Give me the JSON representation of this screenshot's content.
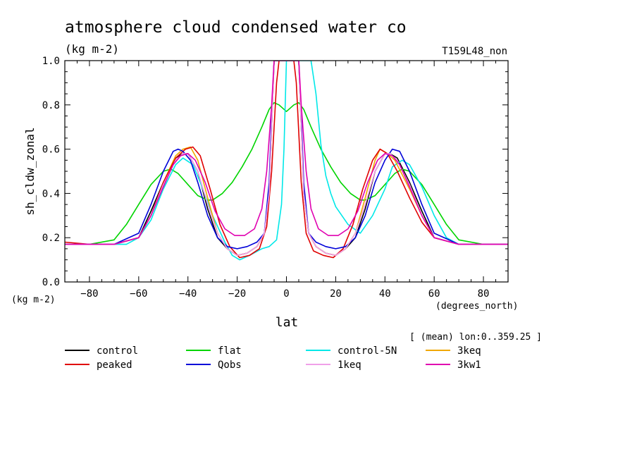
{
  "header": {
    "title": "atmosphere cloud condensed water co",
    "units": "(kg m-2)",
    "experiment": "T159L48_non",
    "units_axis_note": "(kg m-2)",
    "x_units": "(degrees_north)",
    "mean_note": "[ (mean) lon:0..359.25 ]"
  },
  "chart_data": {
    "type": "line",
    "xlabel": "lat",
    "ylabel": "sh_cldw_zonal",
    "xlim": [
      -90,
      90
    ],
    "ylim": [
      0,
      1
    ],
    "xticks": [
      -80,
      -60,
      -40,
      -20,
      0,
      20,
      40,
      60,
      80
    ],
    "yticks": [
      0.0,
      0.2,
      0.4,
      0.6,
      0.8,
      1.0
    ],
    "ytick_labels": [
      "0.0",
      "0.2",
      "0.4",
      "0.6",
      "0.8",
      "1.0"
    ],
    "legend_position": "bottom",
    "series": [
      {
        "name": "control",
        "color": "#000000",
        "x": [
          -90,
          -80,
          -70,
          -60,
          -55,
          -50,
          -45,
          -42,
          -40,
          -36,
          -32,
          -28,
          -24,
          -20,
          -16,
          -12,
          -9,
          -7,
          -6,
          -5,
          -4,
          4,
          5,
          6,
          7,
          9,
          12,
          16,
          20,
          24,
          28,
          32,
          36,
          40,
          42,
          45,
          50,
          55,
          60,
          70,
          80,
          90
        ],
        "y": [
          0.17,
          0.17,
          0.17,
          0.2,
          0.32,
          0.45,
          0.56,
          0.58,
          0.58,
          0.5,
          0.33,
          0.2,
          0.15,
          0.12,
          0.13,
          0.16,
          0.22,
          0.4,
          0.7,
          1.0,
          1.0,
          1.0,
          1.0,
          0.7,
          0.4,
          0.22,
          0.16,
          0.13,
          0.12,
          0.15,
          0.2,
          0.33,
          0.5,
          0.58,
          0.58,
          0.56,
          0.45,
          0.32,
          0.2,
          0.17,
          0.17,
          0.17
        ]
      },
      {
        "name": "flat",
        "color": "#00d400",
        "x": [
          -90,
          -80,
          -70,
          -65,
          -60,
          -55,
          -50,
          -47,
          -44,
          -40,
          -36,
          -32,
          -30,
          -26,
          -22,
          -18,
          -14,
          -10,
          -7,
          -5,
          -3,
          0,
          3,
          5,
          7,
          10,
          14,
          18,
          22,
          26,
          30,
          32,
          36,
          40,
          44,
          47,
          50,
          55,
          60,
          65,
          70,
          80,
          90
        ],
        "y": [
          0.17,
          0.17,
          0.19,
          0.26,
          0.35,
          0.44,
          0.5,
          0.51,
          0.49,
          0.44,
          0.39,
          0.37,
          0.37,
          0.4,
          0.45,
          0.52,
          0.6,
          0.7,
          0.78,
          0.81,
          0.8,
          0.77,
          0.8,
          0.81,
          0.78,
          0.7,
          0.6,
          0.52,
          0.45,
          0.4,
          0.37,
          0.37,
          0.39,
          0.44,
          0.49,
          0.51,
          0.5,
          0.44,
          0.35,
          0.26,
          0.19,
          0.17,
          0.17
        ]
      },
      {
        "name": "control-5N",
        "color": "#00e8e8",
        "x": [
          -90,
          -75,
          -65,
          -60,
          -55,
          -50,
          -45,
          -42,
          -38,
          -35,
          -30,
          -25,
          -22,
          -19,
          -15,
          -10,
          -7,
          -4,
          -2,
          -1,
          0,
          1,
          2,
          4,
          6,
          8,
          10,
          12,
          14,
          16,
          18,
          20,
          25,
          30,
          35,
          40,
          43,
          47,
          50,
          55,
          60,
          65,
          70,
          75,
          90
        ],
        "y": [
          0.17,
          0.17,
          0.17,
          0.2,
          0.28,
          0.42,
          0.53,
          0.56,
          0.53,
          0.45,
          0.3,
          0.18,
          0.12,
          0.1,
          0.12,
          0.15,
          0.16,
          0.19,
          0.35,
          0.6,
          1.0,
          1.0,
          1.0,
          1.0,
          1.0,
          1.0,
          1.0,
          0.85,
          0.62,
          0.48,
          0.4,
          0.34,
          0.26,
          0.22,
          0.3,
          0.42,
          0.52,
          0.55,
          0.53,
          0.43,
          0.3,
          0.2,
          0.17,
          0.17,
          0.17
        ]
      },
      {
        "name": "3keq",
        "color": "#f0a800",
        "x": [
          -90,
          -80,
          -70,
          -60,
          -55,
          -50,
          -45,
          -42,
          -39,
          -36,
          -32,
          -28,
          -24,
          -20,
          -16,
          -12,
          -9,
          -7,
          -6,
          -5,
          -4,
          4,
          5,
          6,
          7,
          9,
          12,
          16,
          20,
          24,
          28,
          32,
          36,
          38,
          41,
          44,
          50,
          55,
          60,
          70,
          80,
          90
        ],
        "y": [
          0.17,
          0.17,
          0.17,
          0.2,
          0.3,
          0.45,
          0.57,
          0.6,
          0.61,
          0.55,
          0.38,
          0.22,
          0.15,
          0.12,
          0.13,
          0.16,
          0.22,
          0.4,
          0.7,
          1.0,
          1.0,
          1.0,
          1.0,
          0.7,
          0.4,
          0.22,
          0.16,
          0.13,
          0.12,
          0.15,
          0.22,
          0.38,
          0.55,
          0.6,
          0.58,
          0.55,
          0.42,
          0.3,
          0.2,
          0.17,
          0.17,
          0.17
        ]
      },
      {
        "name": "peaked",
        "color": "#e00000",
        "x": [
          -90,
          -80,
          -70,
          -60,
          -55,
          -50,
          -45,
          -41,
          -38,
          -35,
          -31,
          -27,
          -23,
          -19,
          -15,
          -11,
          -8,
          -6,
          -4,
          -3,
          3,
          4,
          6,
          8,
          11,
          15,
          19,
          23,
          27,
          31,
          35,
          38,
          41,
          45,
          50,
          55,
          60,
          70,
          80,
          90
        ],
        "y": [
          0.18,
          0.17,
          0.17,
          0.2,
          0.3,
          0.45,
          0.56,
          0.6,
          0.61,
          0.57,
          0.42,
          0.26,
          0.16,
          0.11,
          0.12,
          0.15,
          0.25,
          0.5,
          0.9,
          1.0,
          1.0,
          0.9,
          0.45,
          0.22,
          0.14,
          0.12,
          0.11,
          0.15,
          0.26,
          0.42,
          0.55,
          0.6,
          0.58,
          0.5,
          0.38,
          0.27,
          0.2,
          0.17,
          0.17,
          0.17
        ]
      },
      {
        "name": "Qobs",
        "color": "#0000d8",
        "x": [
          -90,
          -80,
          -70,
          -60,
          -55,
          -50,
          -46,
          -44,
          -42,
          -39,
          -36,
          -32,
          -28,
          -24,
          -20,
          -16,
          -12,
          -9,
          -7,
          -6,
          -5,
          -4,
          4,
          5,
          6,
          7,
          9,
          12,
          16,
          20,
          24,
          28,
          32,
          36,
          40,
          43,
          46,
          50,
          55,
          60,
          70,
          80,
          90
        ],
        "y": [
          0.17,
          0.17,
          0.17,
          0.22,
          0.35,
          0.5,
          0.59,
          0.6,
          0.59,
          0.55,
          0.45,
          0.3,
          0.2,
          0.16,
          0.15,
          0.16,
          0.18,
          0.22,
          0.45,
          0.75,
          1.0,
          1.0,
          1.0,
          1.0,
          0.75,
          0.45,
          0.22,
          0.18,
          0.16,
          0.15,
          0.16,
          0.2,
          0.3,
          0.45,
          0.55,
          0.6,
          0.59,
          0.5,
          0.35,
          0.22,
          0.17,
          0.17,
          0.17
        ]
      },
      {
        "name": "1keq",
        "color": "#f0a0e8",
        "x": [
          -90,
          -80,
          -70,
          -60,
          -55,
          -50,
          -45,
          -42,
          -40,
          -36,
          -32,
          -28,
          -24,
          -20,
          -16,
          -12,
          -9,
          -7,
          -6,
          -5,
          -4,
          4,
          5,
          6,
          7,
          9,
          12,
          16,
          20,
          24,
          28,
          32,
          36,
          40,
          42,
          45,
          50,
          55,
          60,
          70,
          80,
          90
        ],
        "y": [
          0.17,
          0.17,
          0.17,
          0.2,
          0.3,
          0.44,
          0.55,
          0.58,
          0.58,
          0.5,
          0.35,
          0.22,
          0.15,
          0.12,
          0.13,
          0.16,
          0.22,
          0.4,
          0.7,
          1.0,
          1.0,
          1.0,
          1.0,
          0.7,
          0.4,
          0.22,
          0.16,
          0.13,
          0.12,
          0.15,
          0.22,
          0.35,
          0.5,
          0.58,
          0.58,
          0.55,
          0.44,
          0.3,
          0.2,
          0.17,
          0.17,
          0.17
        ]
      },
      {
        "name": "3kw1",
        "color": "#e000b0",
        "x": [
          -90,
          -80,
          -70,
          -60,
          -55,
          -50,
          -46,
          -43,
          -40,
          -37,
          -33,
          -29,
          -25,
          -21,
          -17,
          -13,
          -10,
          -8,
          -6,
          -5,
          -4,
          4,
          5,
          6,
          8,
          10,
          13,
          17,
          21,
          25,
          29,
          33,
          37,
          40,
          43,
          46,
          50,
          55,
          60,
          70,
          80,
          90
        ],
        "y": [
          0.17,
          0.17,
          0.17,
          0.2,
          0.3,
          0.43,
          0.53,
          0.57,
          0.58,
          0.55,
          0.45,
          0.32,
          0.24,
          0.21,
          0.21,
          0.24,
          0.33,
          0.5,
          0.8,
          1.0,
          1.0,
          1.0,
          1.0,
          0.8,
          0.5,
          0.33,
          0.24,
          0.21,
          0.21,
          0.24,
          0.32,
          0.45,
          0.55,
          0.58,
          0.57,
          0.53,
          0.43,
          0.3,
          0.2,
          0.17,
          0.17,
          0.17
        ]
      }
    ]
  }
}
